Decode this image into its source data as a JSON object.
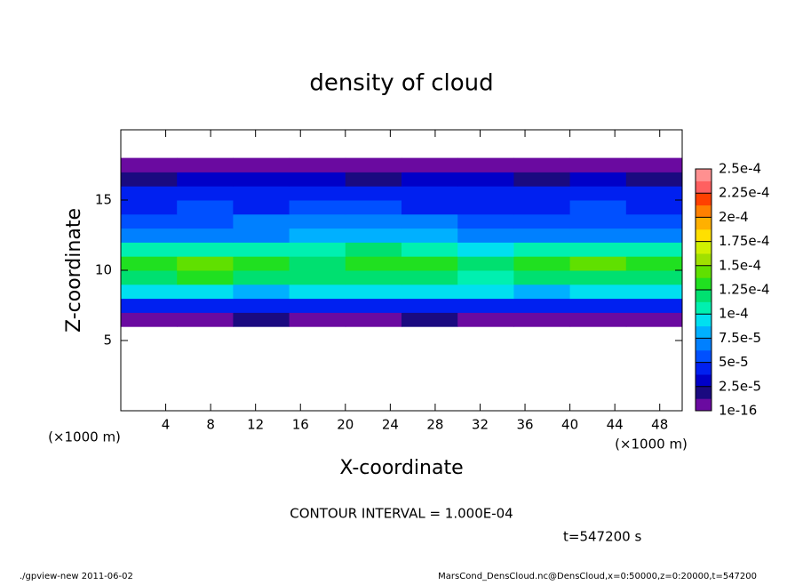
{
  "chart_data": {
    "type": "heatmap",
    "title": "density of cloud",
    "x_label": "X-coordinate",
    "y_label": "Z-coordinate",
    "x_unit": "(×1000 m)",
    "y_unit": "(×1000 m)",
    "xlim": [
      0,
      50
    ],
    "ylim": [
      0,
      20
    ],
    "xticks": [
      4,
      8,
      12,
      16,
      20,
      24,
      28,
      32,
      36,
      40,
      44,
      48
    ],
    "yticks": [
      5,
      10,
      15
    ],
    "x_edges": [
      0,
      5,
      10,
      15,
      20,
      25,
      30,
      35,
      40,
      45,
      50
    ],
    "y_edges": [
      6,
      7,
      8,
      9,
      10,
      11,
      12,
      13,
      14,
      15,
      16,
      17,
      18
    ],
    "values": [
      [
        1e-05,
        1e-05,
        1.5e-05,
        1.2e-05,
        1e-05,
        1.3e-05,
        1e-05,
        1.2e-05,
        1e-05,
        1.1e-05
      ],
      [
        4e-05,
        4.5e-05,
        5e-05,
        4e-05,
        4.5e-05,
        5e-05,
        4e-05,
        4.5e-05,
        4.2e-05,
        4e-05
      ],
      [
        9e-05,
        9.5e-05,
        8.5e-05,
        9e-05,
        0.0001,
        9.5e-05,
        9e-05,
        8.5e-05,
        9e-05,
        9.5e-05
      ],
      [
        0.00012,
        0.00013,
        0.00012,
        0.000115,
        0.000125,
        0.00012,
        0.00011,
        0.00012,
        0.000125,
        0.00012
      ],
      [
        0.00013,
        0.00014,
        0.000135,
        0.000125,
        0.00013,
        0.000135,
        0.00012,
        0.00013,
        0.00014,
        0.00013
      ],
      [
        0.000105,
        0.00011,
        0.000105,
        0.00011,
        0.000115,
        0.00011,
        0.0001,
        0.000105,
        0.00011,
        0.000105
      ],
      [
        7e-05,
        7.5e-05,
        7e-05,
        8e-05,
        8.5e-05,
        8e-05,
        7.5e-05,
        7e-05,
        7.5e-05,
        7e-05
      ],
      [
        6e-05,
        6e-05,
        6.5e-05,
        6.5e-05,
        7e-05,
        6.5e-05,
        6e-05,
        6e-05,
        6e-05,
        6e-05
      ],
      [
        5e-05,
        5.5e-05,
        5e-05,
        5.5e-05,
        5.5e-05,
        5e-05,
        5e-05,
        5e-05,
        5.5e-05,
        5e-05
      ],
      [
        4.5e-05,
        4.5e-05,
        5e-05,
        4.5e-05,
        4.5e-05,
        4.5e-05,
        4.5e-05,
        4.5e-05,
        4.5e-05,
        4.5e-05
      ],
      [
        2.5e-05,
        3e-05,
        2.8e-05,
        3e-05,
        2.5e-05,
        3e-05,
        2.8e-05,
        2.5e-05,
        3e-05,
        2.5e-05
      ],
      [
        1e-05,
        1e-05,
        1e-05,
        1.2e-05,
        1e-05,
        1e-05,
        1e-05,
        1e-05,
        1e-05,
        1e-05
      ]
    ],
    "colorbar_ticks": [
      {
        "value": 1e-16,
        "label": "1e-16"
      },
      {
        "value": 2.5e-05,
        "label": "2.5e-5"
      },
      {
        "value": 5e-05,
        "label": "5e-5"
      },
      {
        "value": 7.5e-05,
        "label": "7.5e-5"
      },
      {
        "value": 0.0001,
        "label": "1e-4"
      },
      {
        "value": 0.000125,
        "label": "1.25e-4"
      },
      {
        "value": 0.00015,
        "label": "1.5e-4"
      },
      {
        "value": 0.000175,
        "label": "1.75e-4"
      },
      {
        "value": 0.0002,
        "label": "2e-4"
      },
      {
        "value": 0.000225,
        "label": "2.25e-4"
      },
      {
        "value": 0.00025,
        "label": "2.5e-4"
      }
    ],
    "colors": [
      "#6a0aa0",
      "#1a0a80",
      "#0000c8",
      "#0020f0",
      "#0050ff",
      "#0080ff",
      "#00b0ff",
      "#00e0f0",
      "#00f0b0",
      "#00e070",
      "#20e020",
      "#60e000",
      "#a0e000",
      "#d0f000",
      "#ffe000",
      "#ffb000",
      "#ff8000",
      "#ff4000",
      "#ff6060",
      "#ff9090"
    ],
    "annotation": "CONTOUR INTERVAL = 1.000E-04",
    "time_label": "t=547200 s",
    "footer_left": "./gpview-new  2011-06-02",
    "footer_right": "MarsCond_DensCloud.nc@DensCloud,x=0:50000,z=0:20000,t=547200"
  }
}
